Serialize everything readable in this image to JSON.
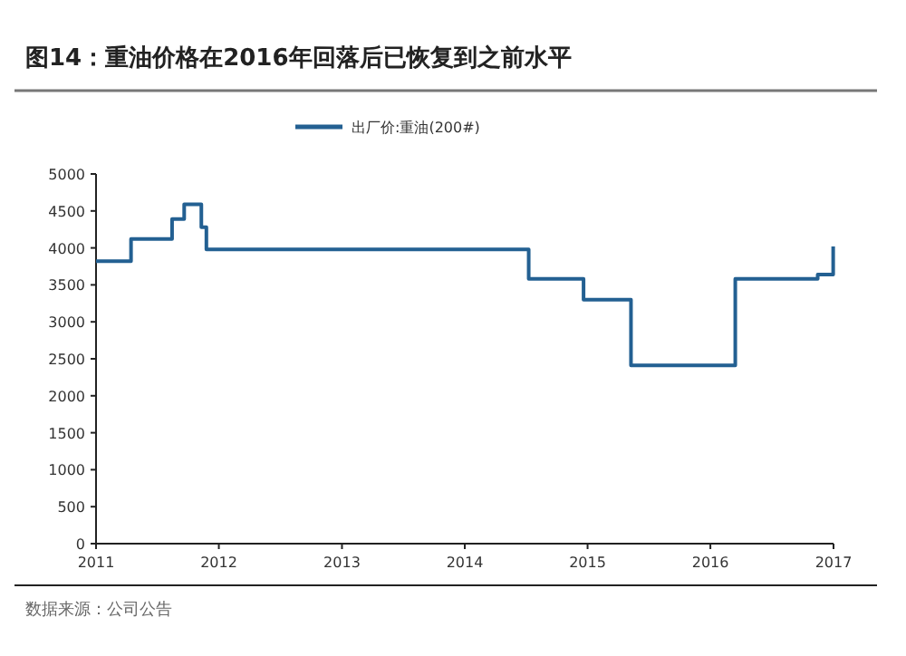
{
  "chart_data": {
    "type": "step",
    "title": "图14：重油价格在2016年回落后已恢复到之前水平",
    "annotations": [
      "数据来源：公司公告"
    ],
    "x": [
      "2011-01-01",
      "2011-04-15",
      "2011-08-15",
      "2011-09-20",
      "2011-11-10",
      "2011-11-25",
      "2014-07-10",
      "2014-12-20",
      "2015-05-10",
      "2016-03-15",
      "2016-11-15",
      "2016-12-31"
    ],
    "series": [
      {
        "name": "出厂价:重油(200#)",
        "color": "#236092",
        "values": [
          3820,
          4120,
          4390,
          4590,
          4280,
          3980,
          3580,
          3300,
          2410,
          3580,
          3640,
          4020
        ]
      }
    ],
    "xlim": [
      "2011-01-01",
      "2017-01-01"
    ],
    "xticks": [
      {
        "value": "2011",
        "label": "2011"
      },
      {
        "value": "2012",
        "label": "2012"
      },
      {
        "value": "2013",
        "label": "2013"
      },
      {
        "value": "2014",
        "label": "2014"
      },
      {
        "value": "2015",
        "label": "2015"
      },
      {
        "value": "2016",
        "label": "2016"
      },
      {
        "value": "2017",
        "label": "2017"
      }
    ],
    "ylim": [
      0,
      5000
    ],
    "yticks": [
      0,
      500,
      1000,
      1500,
      2000,
      2500,
      3000,
      3500,
      4000,
      4500,
      5000
    ],
    "grid": false,
    "legend": "top",
    "line_style": "solid"
  }
}
